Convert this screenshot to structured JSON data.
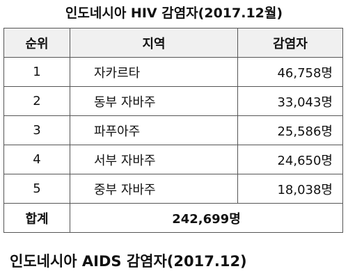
{
  "title": "인도네시아 HIV 감염자(2017.12월)",
  "table": {
    "header": [
      "순위",
      "지역",
      "감염자"
    ],
    "rows": [
      [
        "1",
        "자카르타",
        "46,758명"
      ],
      [
        "2",
        "동부 자바주",
        "33,043명"
      ],
      [
        "3",
        "파푸아주",
        "25,586명"
      ],
      [
        "4",
        "서부 자바주",
        "24,650명"
      ],
      [
        "5",
        "중부 자바주",
        "18,038명"
      ]
    ],
    "total": [
      "합계",
      "242,699명"
    ]
  },
  "subtitle": "인도네시아 AIDS 감염자(2017.12)"
}
